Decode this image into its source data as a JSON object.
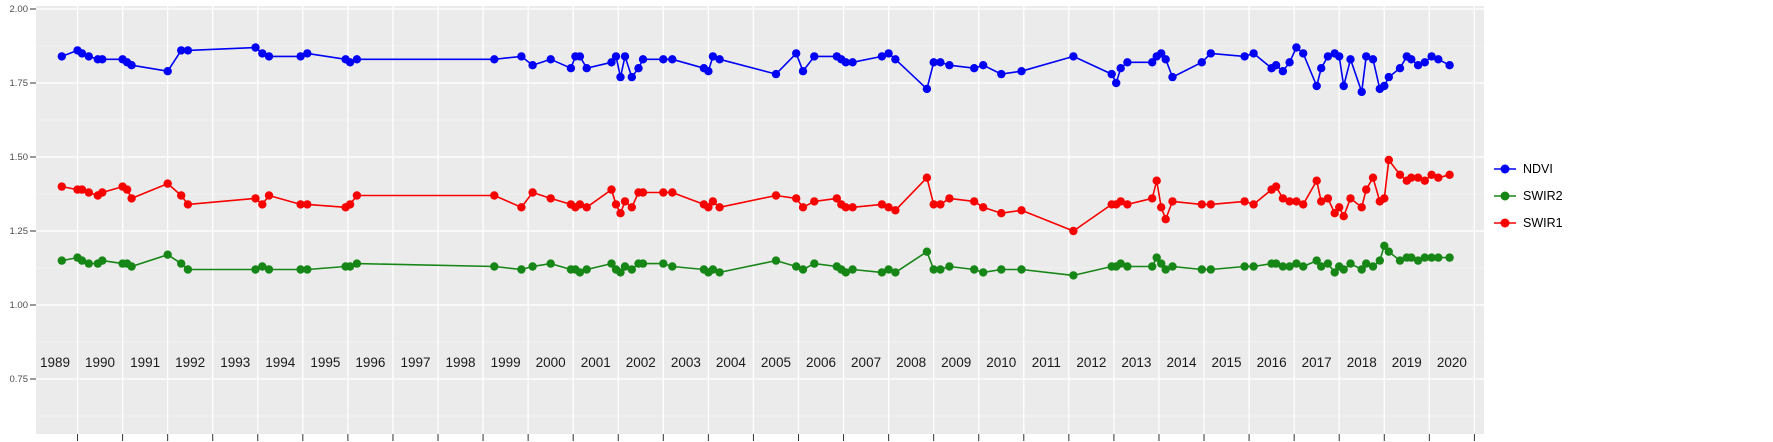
{
  "chart_data": {
    "type": "line",
    "title": "",
    "xlabel": "",
    "ylabel": "",
    "x_range": [
      1989.05,
      2021.2
    ],
    "y_range": [
      0.75,
      2.0
    ],
    "grid": "white-on-gray",
    "legend_position": "right",
    "x_ticks": [
      "1989",
      "1990",
      "1991",
      "1992",
      "1993",
      "1994",
      "1995",
      "1996",
      "1997",
      "1998",
      "1999",
      "2000",
      "2001",
      "2002",
      "2003",
      "2004",
      "2005",
      "2006",
      "2007",
      "2008",
      "2009",
      "2010",
      "2011",
      "2012",
      "2013",
      "2014",
      "2015",
      "2016",
      "2017",
      "2018",
      "2019",
      "2020"
    ],
    "y_ticks": [
      "2.00",
      "1.75",
      "1.50",
      "1.25",
      "1.00",
      "0.75"
    ],
    "y_tick_values": [
      2.0,
      1.75,
      1.5,
      1.25,
      1.0,
      0.75
    ],
    "x": [
      1989.65,
      1990.0,
      1990.1,
      1990.25,
      1990.45,
      1990.55,
      1991.0,
      1991.1,
      1991.2,
      1992.0,
      1992.3,
      1992.45,
      1993.95,
      1994.1,
      1994.25,
      1994.95,
      1995.1,
      1995.95,
      1996.05,
      1996.2,
      1999.25,
      1999.85,
      2000.1,
      2000.5,
      2000.95,
      2001.05,
      2001.15,
      2001.3,
      2001.85,
      2001.95,
      2002.05,
      2002.15,
      2002.3,
      2002.45,
      2002.55,
      2003.0,
      2003.2,
      2003.9,
      2004.0,
      2004.1,
      2004.25,
      2005.5,
      2005.95,
      2006.1,
      2006.35,
      2006.85,
      2006.95,
      2007.05,
      2007.2,
      2007.85,
      2008.0,
      2008.15,
      2008.85,
      2009.0,
      2009.15,
      2009.35,
      2009.9,
      2010.1,
      2010.5,
      2010.95,
      2012.1,
      2012.95,
      2013.05,
      2013.15,
      2013.3,
      2013.85,
      2013.95,
      2014.05,
      2014.15,
      2014.3,
      2014.95,
      2015.15,
      2015.9,
      2016.1,
      2016.5,
      2016.6,
      2016.75,
      2016.9,
      2017.05,
      2017.2,
      2017.5,
      2017.6,
      2017.75,
      2017.9,
      2018.0,
      2018.1,
      2018.25,
      2018.5,
      2018.6,
      2018.75,
      2018.9,
      2019.0,
      2019.1,
      2019.35,
      2019.5,
      2019.6,
      2019.75,
      2019.9,
      2020.05,
      2020.2,
      2020.45
    ],
    "series": [
      {
        "name": "NDVI",
        "color": "#0000f5",
        "values": [
          1.84,
          1.86,
          1.85,
          1.84,
          1.83,
          1.83,
          1.83,
          1.82,
          1.81,
          1.79,
          1.86,
          1.86,
          1.87,
          1.85,
          1.84,
          1.84,
          1.85,
          1.83,
          1.82,
          1.83,
          1.83,
          1.84,
          1.81,
          1.83,
          1.8,
          1.84,
          1.84,
          1.8,
          1.82,
          1.84,
          1.77,
          1.84,
          1.77,
          1.8,
          1.83,
          1.83,
          1.83,
          1.8,
          1.79,
          1.84,
          1.83,
          1.78,
          1.85,
          1.79,
          1.84,
          1.84,
          1.83,
          1.82,
          1.82,
          1.84,
          1.85,
          1.83,
          1.73,
          1.82,
          1.82,
          1.81,
          1.8,
          1.81,
          1.78,
          1.79,
          1.84,
          1.78,
          1.75,
          1.8,
          1.82,
          1.82,
          1.84,
          1.85,
          1.83,
          1.77,
          1.82,
          1.85,
          1.84,
          1.85,
          1.8,
          1.81,
          1.79,
          1.82,
          1.87,
          1.85,
          1.74,
          1.8,
          1.84,
          1.85,
          1.84,
          1.74,
          1.83,
          1.72,
          1.84,
          1.83,
          1.73,
          1.74,
          1.77,
          1.8,
          1.84,
          1.83,
          1.81,
          1.82,
          1.84,
          1.83,
          1.81
        ]
      },
      {
        "name": "SWIR2",
        "color": "#168616",
        "values": [
          1.15,
          1.16,
          1.15,
          1.14,
          1.14,
          1.15,
          1.14,
          1.14,
          1.13,
          1.17,
          1.14,
          1.12,
          1.12,
          1.13,
          1.12,
          1.12,
          1.12,
          1.13,
          1.13,
          1.14,
          1.13,
          1.12,
          1.13,
          1.14,
          1.12,
          1.12,
          1.11,
          1.12,
          1.14,
          1.12,
          1.11,
          1.13,
          1.12,
          1.14,
          1.14,
          1.14,
          1.13,
          1.12,
          1.11,
          1.12,
          1.11,
          1.15,
          1.13,
          1.12,
          1.14,
          1.13,
          1.12,
          1.11,
          1.12,
          1.11,
          1.12,
          1.11,
          1.18,
          1.12,
          1.12,
          1.13,
          1.12,
          1.11,
          1.12,
          1.12,
          1.1,
          1.13,
          1.13,
          1.14,
          1.13,
          1.13,
          1.16,
          1.14,
          1.12,
          1.13,
          1.12,
          1.12,
          1.13,
          1.13,
          1.14,
          1.14,
          1.13,
          1.13,
          1.14,
          1.13,
          1.15,
          1.13,
          1.14,
          1.11,
          1.13,
          1.12,
          1.14,
          1.12,
          1.14,
          1.13,
          1.15,
          1.2,
          1.18,
          1.15,
          1.16,
          1.16,
          1.15,
          1.16,
          1.16,
          1.16,
          1.16
        ]
      },
      {
        "name": "SWIR1",
        "color": "#f80000",
        "values": [
          1.4,
          1.39,
          1.39,
          1.38,
          1.37,
          1.38,
          1.4,
          1.39,
          1.36,
          1.41,
          1.37,
          1.34,
          1.36,
          1.34,
          1.37,
          1.34,
          1.34,
          1.33,
          1.34,
          1.37,
          1.37,
          1.33,
          1.38,
          1.36,
          1.34,
          1.33,
          1.34,
          1.33,
          1.39,
          1.34,
          1.31,
          1.35,
          1.33,
          1.38,
          1.38,
          1.38,
          1.38,
          1.34,
          1.33,
          1.35,
          1.33,
          1.37,
          1.36,
          1.33,
          1.35,
          1.36,
          1.34,
          1.33,
          1.33,
          1.34,
          1.33,
          1.32,
          1.43,
          1.34,
          1.34,
          1.36,
          1.35,
          1.33,
          1.31,
          1.32,
          1.25,
          1.34,
          1.34,
          1.35,
          1.34,
          1.36,
          1.42,
          1.33,
          1.29,
          1.35,
          1.34,
          1.34,
          1.35,
          1.34,
          1.39,
          1.4,
          1.36,
          1.35,
          1.35,
          1.34,
          1.42,
          1.35,
          1.36,
          1.31,
          1.33,
          1.3,
          1.36,
          1.33,
          1.39,
          1.43,
          1.35,
          1.36,
          1.49,
          1.44,
          1.42,
          1.43,
          1.43,
          1.42,
          1.44,
          1.43,
          1.44
        ]
      }
    ]
  },
  "legend": {
    "items": [
      "NDVI",
      "SWIR2",
      "SWIR1"
    ]
  },
  "colors": {
    "panel_bg": "#ebebeb",
    "grid_major": "#ffffff",
    "grid_minor": "#f5f5f5",
    "tick": "#333333",
    "y_axis_text": "#4d4d4d",
    "x_axis_text": "#1a1a1a"
  }
}
